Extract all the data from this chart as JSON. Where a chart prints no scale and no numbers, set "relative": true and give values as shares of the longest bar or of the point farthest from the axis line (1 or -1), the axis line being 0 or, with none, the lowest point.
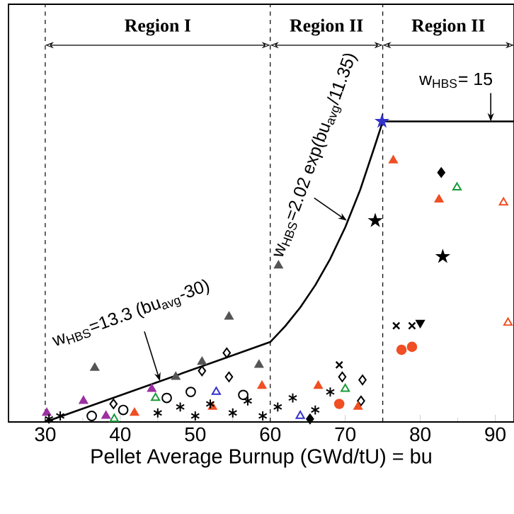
{
  "chart_data": {
    "type": "scatter",
    "relative": true,
    "xlabel": "Pellet Average Burnup (GWd/tU) = bu",
    "xlim": [
      25.1,
      92.5
    ],
    "xticks": [
      30,
      40,
      50,
      60,
      70,
      80,
      90
    ],
    "annotations": [
      {
        "text": "w$_{HBS}$=13.3 (bu$_{avg}$-30)",
        "x": 45.3,
        "y": 0.136
      },
      {
        "text": "w$_{HBS}$=2.02 exp(bu$_{avg}$/11.35)",
        "x": 70.2,
        "y": 0.67
      },
      {
        "text": "w$_{HBS}$= 15",
        "x": 89.4,
        "y": 1.0
      },
      "Region I",
      "Region II",
      "Region II"
    ],
    "ref_lines": [
      {
        "axis": "x",
        "value": 30,
        "line_style": "dashed"
      },
      {
        "axis": "x",
        "value": 60,
        "line_style": "dashed"
      },
      {
        "axis": "x",
        "value": 75,
        "line_style": "dashed"
      }
    ],
    "series": [
      {
        "type": "line",
        "color": "#000000",
        "x": [
          30,
          60,
          62,
          64,
          66,
          68,
          70,
          72,
          74,
          75,
          92.5
        ],
        "values": [
          0,
          0.266,
          0.319,
          0.381,
          0.455,
          0.543,
          0.648,
          0.773,
          0.923,
          1.0,
          1.0
        ]
      },
      {
        "marker": "triangle",
        "color": "#555555",
        "x": [
          36.6,
          54.5,
          61.1,
          50.9,
          47.4,
          58.5
        ],
        "values": [
          0.18,
          0.35,
          0.52,
          0.2,
          0.15,
          0.19
        ]
      },
      {
        "marker": "diamond-open",
        "color": "#000000",
        "x": [
          54.2,
          50.9,
          54.5,
          39.1,
          72.3,
          72.1,
          69.6
        ],
        "values": [
          0.23,
          0.17,
          0.15,
          0.06,
          0.14,
          0.07,
          0.15
        ]
      },
      {
        "marker": "diamond",
        "color": "#000000",
        "x": [
          82.8,
          65.3
        ],
        "values": [
          0.83,
          0.01
        ]
      },
      {
        "marker": "triangle",
        "color": "#f04e23",
        "x": [
          76.4,
          82.5,
          71.7,
          66.4,
          41.9,
          52.3,
          58.9
        ],
        "values": [
          0.87,
          0.74,
          0.05,
          0.12,
          0.03,
          0.05,
          0.12
        ]
      },
      {
        "marker": "triangle-open",
        "color": "#1a9a3a",
        "x": [
          84.9,
          70.0,
          39.2,
          44.7
        ],
        "values": [
          0.78,
          0.11,
          0.01,
          0.08
        ]
      },
      {
        "marker": "triangle-down-open",
        "color": "#f04e23",
        "x": [
          91.1,
          91.7
        ],
        "values": [
          0.73,
          0.33
        ]
      },
      {
        "marker": "star",
        "color": "#000000",
        "x": [
          74.0,
          83.0
        ],
        "values": [
          0.67,
          0.55
        ]
      },
      {
        "marker": "cross",
        "color": "#000000",
        "x": [
          76.8,
          78.9,
          69.2
        ],
        "values": [
          0.32,
          0.32,
          0.19
        ]
      },
      {
        "marker": "triangle-down",
        "color": "#000000",
        "x": [
          80.0
        ],
        "values": [
          0.33
        ]
      },
      {
        "marker": "circle",
        "color": "#f04e23",
        "x": [
          77.5,
          78.9,
          69.2
        ],
        "values": [
          0.24,
          0.25,
          0.06
        ]
      },
      {
        "marker": "star",
        "color": "#3333cc",
        "x": [
          74.9
        ],
        "values": [
          1.0
        ]
      },
      {
        "marker": "triangle-open",
        "color": "#3333cc",
        "x": [
          64.0,
          52.8
        ],
        "values": [
          0.02,
          0.1
        ]
      },
      {
        "marker": "triangle",
        "color": "#9b30a0",
        "x": [
          30.2,
          35.1,
          38.1,
          44.2
        ],
        "values": [
          0.03,
          0.07,
          0.02,
          0.11
        ]
      },
      {
        "marker": "circle-open",
        "color": "#000000",
        "x": [
          36.2,
          40.4,
          46.2,
          49.4,
          56.4
        ],
        "values": [
          0.02,
          0.04,
          0.08,
          0.1,
          0.09
        ]
      },
      {
        "marker": "cross",
        "color": "#000000",
        "x": [
          30.5,
          32,
          45,
          48,
          50,
          52,
          55,
          57,
          59,
          61,
          63,
          66,
          68
        ],
        "values": [
          0.01,
          0.02,
          0.03,
          0.05,
          0.02,
          0.06,
          0.03,
          0.07,
          0.02,
          0.05,
          0.08,
          0.04,
          0.1
        ]
      }
    ]
  }
}
